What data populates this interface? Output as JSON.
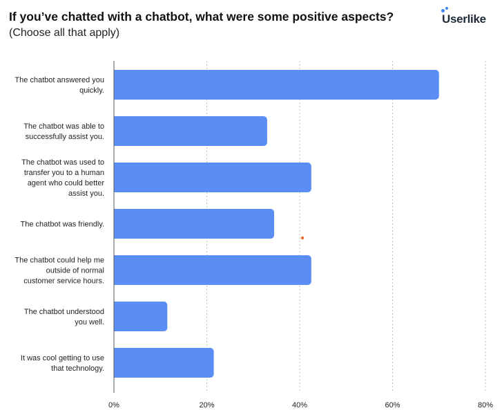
{
  "header": {
    "title": "If you’ve chatted with a chatbot, what were some positive aspects?",
    "subtitle": "(Choose all that apply)",
    "logo": "Userlike"
  },
  "chart_data": {
    "type": "bar",
    "orientation": "horizontal",
    "title": "If you’ve chatted with a chatbot, what were some positive aspects?",
    "subtitle": "(Choose all that apply)",
    "categories": [
      [
        "The chatbot answered you",
        "quickly."
      ],
      [
        "The chatbot was able to",
        "successfully assist you."
      ],
      [
        "The chatbot was used to",
        "transfer you to a human",
        "agent who could better",
        "assist you."
      ],
      [
        "The chatbot was friendly."
      ],
      [
        "The chatbot could help me",
        "outside of normal",
        "customer service hours."
      ],
      [
        "The chatbot understood",
        "you well."
      ],
      [
        "It was cool getting to use",
        "that technology."
      ]
    ],
    "values": [
      70,
      33,
      42.5,
      34.5,
      42.5,
      11.5,
      21.5
    ],
    "unit": "%",
    "xlim": [
      0,
      80
    ],
    "ticks": [
      "0%",
      "20%",
      "40%",
      "60%",
      "80%"
    ],
    "tick_values": [
      0,
      20,
      40,
      60,
      80
    ],
    "bar_color": "#5b8ef5",
    "grid": "dotted vertical",
    "legend": "none"
  },
  "annotations": {
    "marker_color": "#e8702a"
  }
}
